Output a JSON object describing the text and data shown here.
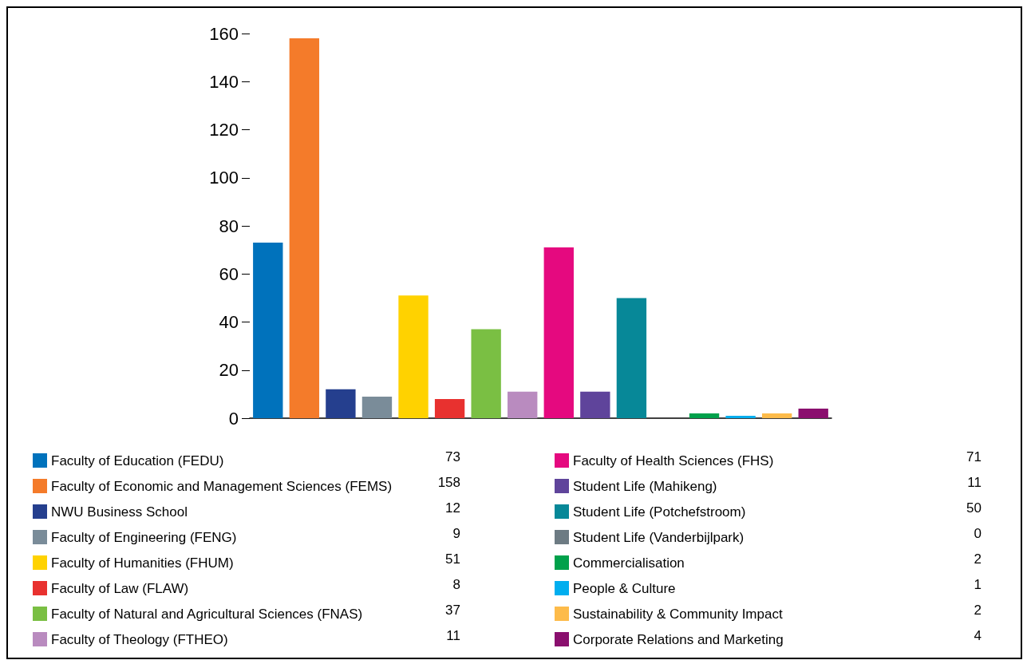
{
  "chart_data": {
    "type": "bar",
    "categories": [
      null,
      null,
      null,
      null,
      null,
      null,
      null,
      null,
      null,
      null,
      null,
      null,
      null,
      null,
      null,
      null
    ],
    "series": [
      {
        "name": "Faculty of Education (FEDU)",
        "color": "#0072bc",
        "values": [
          73,
          null,
          null,
          null,
          null,
          null,
          null,
          null,
          null,
          null,
          null,
          null,
          null,
          null,
          null,
          null
        ]
      },
      {
        "name": "Faculty of Economic and Management Sciences (FEMS)",
        "color": "#f47b2a",
        "values": [
          null,
          158,
          null,
          null,
          null,
          null,
          null,
          null,
          null,
          null,
          null,
          null,
          null,
          null,
          null,
          null
        ]
      },
      {
        "name": "NWU Business School",
        "color": "#253f8e",
        "values": [
          null,
          null,
          12,
          null,
          null,
          null,
          null,
          null,
          null,
          null,
          null,
          null,
          null,
          null,
          null,
          null
        ]
      },
      {
        "name": "Faculty of Engineering (FENG)",
        "color": "#7a8c99",
        "values": [
          null,
          null,
          null,
          9,
          null,
          null,
          null,
          null,
          null,
          null,
          null,
          null,
          null,
          null,
          null,
          null
        ]
      },
      {
        "name": "Faculty of Humanities (FHUM)",
        "color": "#ffd200",
        "values": [
          null,
          null,
          null,
          null,
          51,
          null,
          null,
          null,
          null,
          null,
          null,
          null,
          null,
          null,
          null,
          null
        ]
      },
      {
        "name": "Faculty of Law (FLAW)",
        "color": "#e8312f",
        "values": [
          null,
          null,
          null,
          null,
          null,
          8,
          null,
          null,
          null,
          null,
          null,
          null,
          null,
          null,
          null,
          null
        ]
      },
      {
        "name": "Faculty of Natural and Agricultural Sciences (FNAS)",
        "color": "#7abf43",
        "values": [
          null,
          null,
          null,
          null,
          null,
          null,
          37,
          null,
          null,
          null,
          null,
          null,
          null,
          null,
          null,
          null
        ]
      },
      {
        "name": "Faculty of Theology (FTHEO)",
        "color": "#b98bbf",
        "values": [
          null,
          null,
          null,
          null,
          null,
          null,
          null,
          11,
          null,
          null,
          null,
          null,
          null,
          null,
          null,
          null
        ]
      },
      {
        "name": "Faculty of Health Sciences (FHS)",
        "color": "#e5097f",
        "values": [
          null,
          null,
          null,
          null,
          null,
          null,
          null,
          null,
          71,
          null,
          null,
          null,
          null,
          null,
          null,
          null
        ]
      },
      {
        "name": "Student Life (Mahikeng)",
        "color": "#5f449b",
        "values": [
          null,
          null,
          null,
          null,
          null,
          null,
          null,
          null,
          null,
          11,
          null,
          null,
          null,
          null,
          null,
          null
        ]
      },
      {
        "name": "Student Life (Potchefstroom)",
        "color": "#078898",
        "values": [
          null,
          null,
          null,
          null,
          null,
          null,
          null,
          null,
          null,
          null,
          50,
          null,
          null,
          null,
          null,
          null
        ]
      },
      {
        "name": "Student Life (Vanderbijlpark)",
        "color": "#6d7b83",
        "values": [
          null,
          null,
          null,
          null,
          null,
          null,
          null,
          null,
          null,
          null,
          null,
          0,
          null,
          null,
          null,
          null
        ]
      },
      {
        "name": "Commercialisation",
        "color": "#00a14b",
        "values": [
          null,
          null,
          null,
          null,
          null,
          null,
          null,
          null,
          null,
          null,
          null,
          null,
          2,
          null,
          null,
          null
        ]
      },
      {
        "name": "People & Culture",
        "color": "#00aeef",
        "values": [
          null,
          null,
          null,
          null,
          null,
          null,
          null,
          null,
          null,
          null,
          null,
          null,
          null,
          1,
          null,
          null
        ]
      },
      {
        "name": "Sustainability & Community Impact",
        "color": "#fdbb4a",
        "values": [
          null,
          null,
          null,
          null,
          null,
          null,
          null,
          null,
          null,
          null,
          null,
          null,
          null,
          null,
          2,
          null
        ]
      },
      {
        "name": "Corporate Relations and Marketing",
        "color": "#8a0f6e",
        "values": [
          null,
          null,
          null,
          null,
          null,
          null,
          null,
          null,
          null,
          null,
          null,
          null,
          null,
          null,
          null,
          4
        ]
      }
    ],
    "stacked": true,
    "ylim": [
      0,
      160
    ],
    "yticks": [
      0,
      20,
      40,
      60,
      80,
      100,
      120,
      140,
      160
    ],
    "annotations": [
      "73",
      "158",
      "12",
      "9",
      "51",
      "8",
      "37",
      "11",
      "71",
      "11",
      "50",
      "0",
      "2",
      "1",
      "2",
      "4"
    ],
    "grid": false,
    "legend": "bottom",
    "tick_labels": "y"
  }
}
